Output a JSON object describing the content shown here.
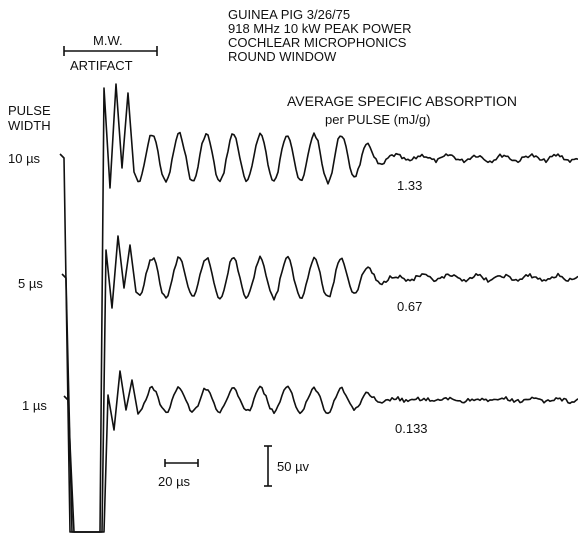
{
  "header": {
    "lines": [
      "GUINEA PIG   3/26/75",
      "918 MHz   10 kW PEAK POWER",
      "COCHLEAR MICROPHONICS",
      "ROUND WINDOW"
    ]
  },
  "artifact": {
    "line1": "M.W.",
    "line2": "ARTIFACT"
  },
  "pulse_width_label": {
    "line1": "PULSE",
    "line2": "WIDTH"
  },
  "absorption_label": {
    "line1": "AVERAGE SPECIFIC ABSORPTION",
    "line2": "per PULSE  (mJ/g)"
  },
  "traces": [
    {
      "pulse": "10 µs",
      "absorption": "1.33"
    },
    {
      "pulse": "5 µs",
      "absorption": "0.67"
    },
    {
      "pulse": "1 µs",
      "absorption": "0.133"
    }
  ],
  "scale": {
    "time": "20 µs",
    "voltage": "50 µv"
  }
}
